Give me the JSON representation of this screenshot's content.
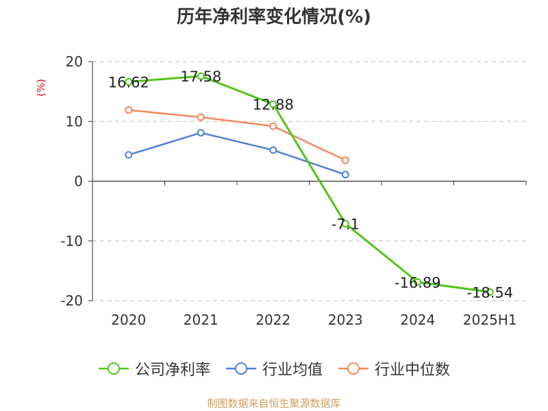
{
  "chart_data": {
    "type": "line",
    "title": "历年净利率变化情况(%)",
    "ylabel": "(%)",
    "xlabel": "",
    "categories": [
      "2020",
      "2021",
      "2022",
      "2023",
      "2024",
      "2025H1"
    ],
    "ylim": [
      -20,
      20
    ],
    "yticks": [
      20,
      10,
      0,
      -10,
      -20
    ],
    "grid": true,
    "legend_position": "bottom",
    "series": [
      {
        "name": "公司净利率",
        "color": "#52c41a",
        "values": [
          16.62,
          17.58,
          12.88,
          -7.1,
          -16.89,
          -18.54
        ],
        "show_labels": true
      },
      {
        "name": "行业均值",
        "color": "#4e7fd6",
        "values": [
          4.4,
          8.1,
          5.2,
          1.1,
          null,
          null
        ],
        "show_labels": false
      },
      {
        "name": "行业中位数",
        "color": "#f4885a",
        "values": [
          11.9,
          10.7,
          9.2,
          3.5,
          null,
          null
        ],
        "show_labels": false
      }
    ]
  },
  "source": "制图数据来自恒生聚源数据库"
}
